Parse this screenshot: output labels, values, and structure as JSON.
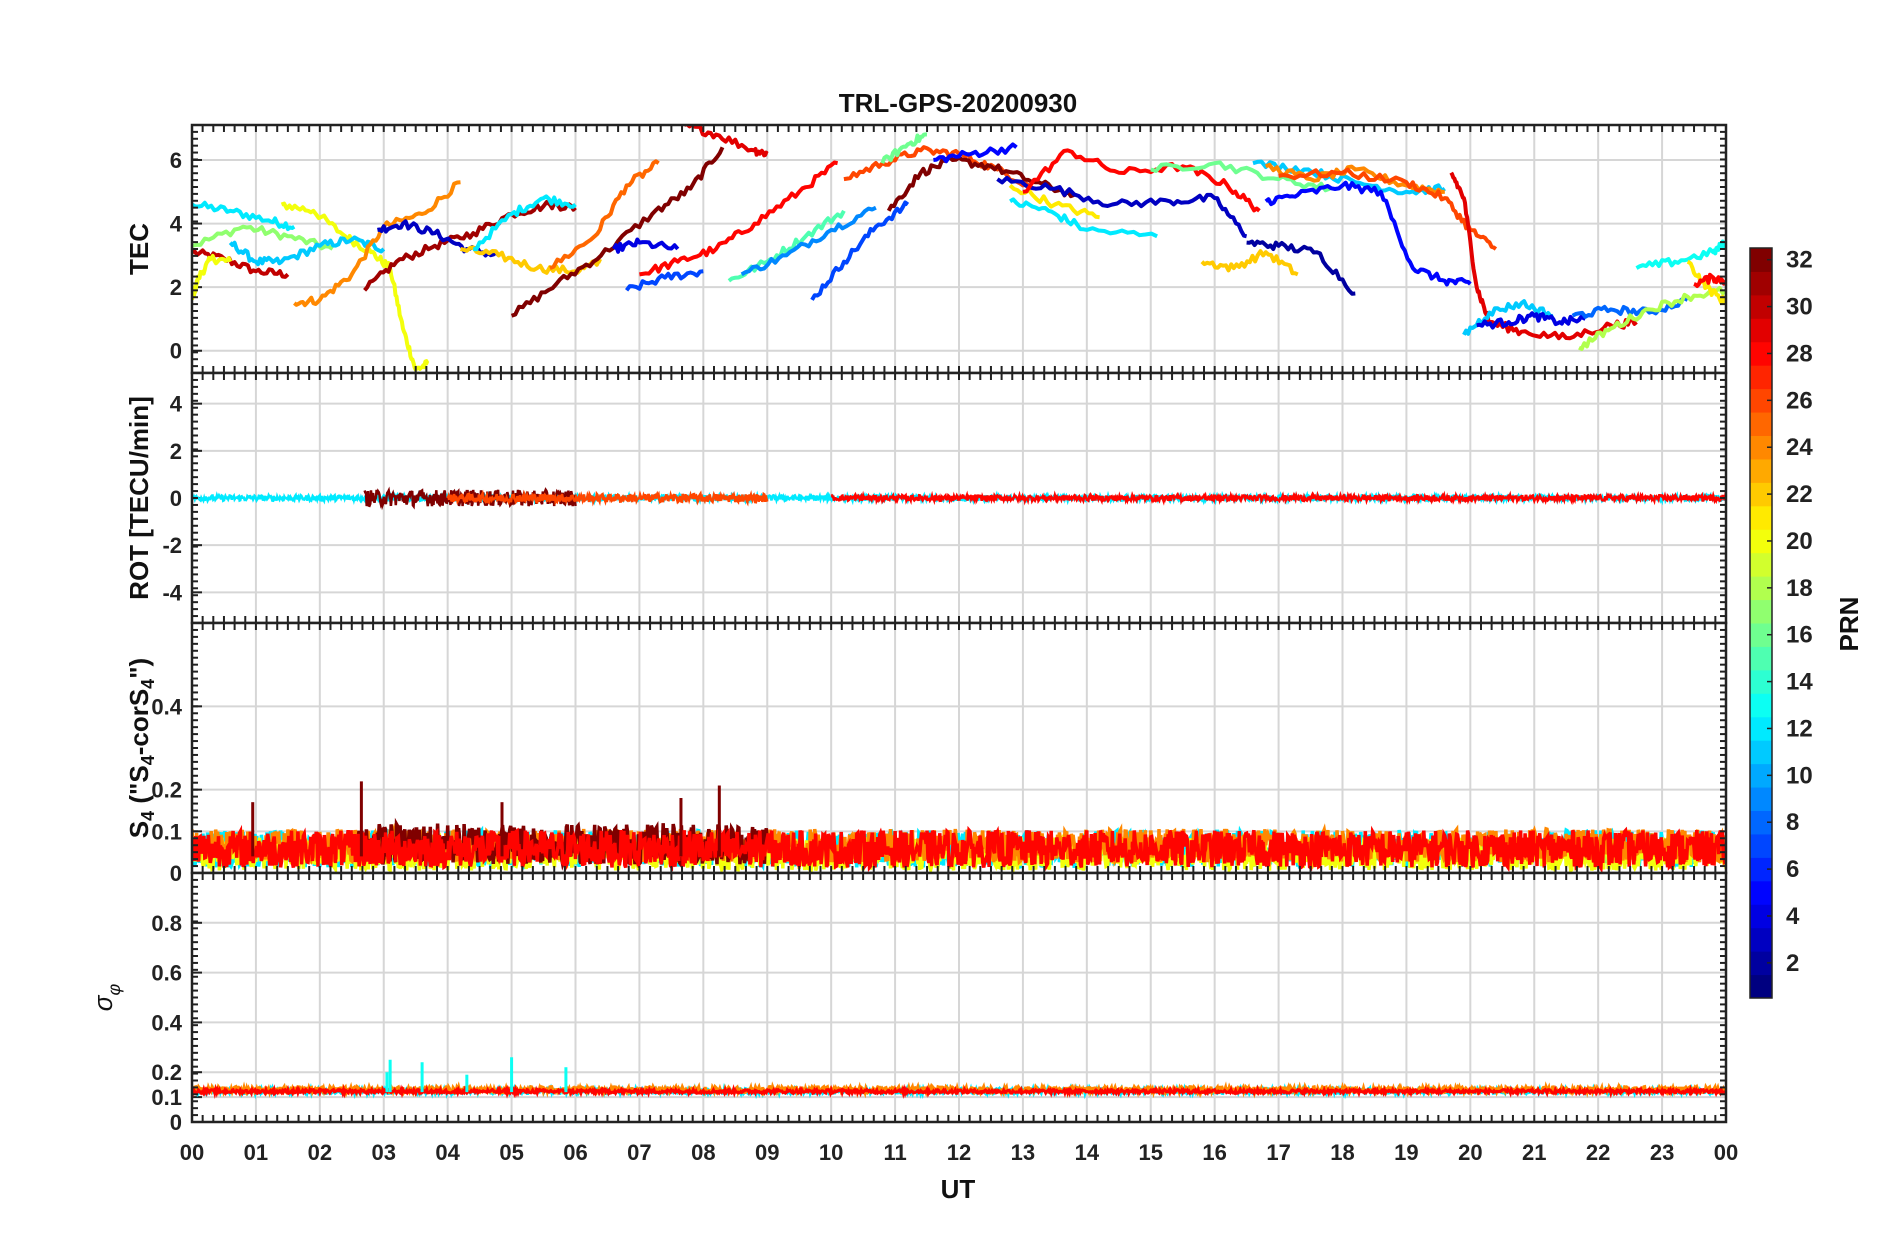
{
  "chart_data": {
    "type": "line",
    "title": "TRL-GPS-20200930",
    "xlabel": "UT",
    "x_ticks": [
      "00",
      "01",
      "02",
      "03",
      "04",
      "05",
      "06",
      "07",
      "08",
      "09",
      "10",
      "11",
      "12",
      "13",
      "14",
      "15",
      "16",
      "17",
      "18",
      "19",
      "20",
      "21",
      "22",
      "23",
      "00"
    ],
    "xlim": [
      0,
      24
    ],
    "grid": true,
    "colorbar": {
      "label": "PRN",
      "range": [
        1,
        32
      ],
      "ticks": [
        "2",
        "4",
        "6",
        "8",
        "10",
        "12",
        "14",
        "16",
        "18",
        "20",
        "22",
        "24",
        "26",
        "28",
        "30",
        "32"
      ],
      "colormap": "jet"
    },
    "panels": [
      {
        "ylabel": "TEC",
        "ylim": [
          -0.7,
          7.1
        ],
        "y_ticks": [
          "0",
          "2",
          "4",
          "6"
        ],
        "series": [
          {
            "prn": 30,
            "x": [
              0,
              0.5,
              1,
              1.5
            ],
            "y": [
              3.1,
              2.9,
              2.5,
              2.4
            ]
          },
          {
            "prn": 12,
            "x": [
              0,
              0.6,
              1.2,
              1.6
            ],
            "y": [
              4.6,
              4.4,
              4.1,
              3.9
            ]
          },
          {
            "prn": 17,
            "x": [
              0,
              0.8,
              1.5,
              2.2
            ],
            "y": [
              3.3,
              3.9,
              3.6,
              3.2
            ]
          },
          {
            "prn": 20,
            "x": [
              0,
              0.1,
              0.3,
              0.6
            ],
            "y": [
              1.6,
              2.3,
              2.9,
              2.8
            ]
          },
          {
            "prn": 20,
            "x": [
              1.4,
              1.9,
              2.4,
              2.8,
              3.1,
              3.3,
              3.5,
              3.7
            ],
            "y": [
              4.6,
              4.4,
              3.6,
              3.1,
              2.6,
              0.7,
              -0.6,
              -0.4
            ]
          },
          {
            "prn": 11,
            "x": [
              0.6,
              1.0,
              1.4,
              2.0,
              2.5,
              3.0
            ],
            "y": [
              3.4,
              2.8,
              2.8,
              3.3,
              3.5,
              3.2
            ]
          },
          {
            "prn": 24,
            "x": [
              1.6,
              2.0,
              2.5,
              3.0,
              3.6,
              4.2
            ],
            "y": [
              1.5,
              1.6,
              2.4,
              3.9,
              4.3,
              5.3
            ]
          },
          {
            "prn": 31,
            "x": [
              2.7,
              3.2,
              3.8,
              4.4,
              5.0,
              5.6,
              6.0
            ],
            "y": [
              1.9,
              2.8,
              3.3,
              3.7,
              4.3,
              4.6,
              4.5
            ]
          },
          {
            "prn": 3,
            "x": [
              2.9,
              3.3,
              3.8,
              4.3,
              4.8
            ],
            "y": [
              3.8,
              4.0,
              3.7,
              3.2,
              3.0
            ]
          },
          {
            "prn": 22,
            "x": [
              4.2,
              4.8,
              5.4,
              6.0,
              6.4
            ],
            "y": [
              3.2,
              3.0,
              2.6,
              2.5,
              2.8
            ]
          },
          {
            "prn": 12,
            "x": [
              4.4,
              5.0,
              5.5,
              6.0
            ],
            "y": [
              3.2,
              4.3,
              4.8,
              4.6
            ]
          },
          {
            "prn": 32,
            "x": [
              5.0,
              5.7,
              6.4,
              7.2,
              7.8,
              8.3
            ],
            "y": [
              1.1,
              2.1,
              3.0,
              4.3,
              5.1,
              6.4
            ]
          },
          {
            "prn": 25,
            "x": [
              5.6,
              6.3,
              6.8,
              7.3
            ],
            "y": [
              2.6,
              3.6,
              5.2,
              5.9
            ]
          },
          {
            "prn": 4,
            "x": [
              6.6,
              7.0,
              7.6
            ],
            "y": [
              3.2,
              3.4,
              3.2
            ]
          },
          {
            "prn": 7,
            "x": [
              6.8,
              7.4,
              8.0
            ],
            "y": [
              1.9,
              2.3,
              2.5
            ]
          },
          {
            "prn": 28,
            "x": [
              7.0,
              7.6,
              8.2,
              8.8,
              9.5,
              10.1
            ],
            "y": [
              2.4,
              2.8,
              3.2,
              4.0,
              5.0,
              5.9
            ]
          },
          {
            "prn": 29,
            "x": [
              7.7,
              8.2,
              8.8,
              9.0
            ],
            "y": [
              7.1,
              6.8,
              6.3,
              6.2
            ]
          },
          {
            "prn": 15,
            "x": [
              8.4,
              9.0,
              9.6,
              10.2
            ],
            "y": [
              2.2,
              2.8,
              3.6,
              4.4
            ]
          },
          {
            "prn": 9,
            "x": [
              8.6,
              9.3,
              10.0,
              10.7
            ],
            "y": [
              2.4,
              3.0,
              3.8,
              4.5
            ]
          },
          {
            "prn": 7,
            "x": [
              9.7,
              10.2,
              10.7,
              11.2
            ],
            "y": [
              1.6,
              2.8,
              3.9,
              4.6
            ]
          },
          {
            "prn": 26,
            "x": [
              10.2,
              10.8,
              11.4,
              12.0,
              12.6,
              13.2
            ],
            "y": [
              5.4,
              5.9,
              6.3,
              6.2,
              5.7,
              5.1
            ]
          },
          {
            "prn": 32,
            "x": [
              10.9,
              11.4,
              11.9,
              12.5,
              13.2,
              13.8
            ],
            "y": [
              4.4,
              5.6,
              6.0,
              5.8,
              5.3,
              4.9
            ]
          },
          {
            "prn": 16,
            "x": [
              10.8,
              11.2,
              11.5
            ],
            "y": [
              5.9,
              6.5,
              6.8
            ]
          },
          {
            "prn": 5,
            "x": [
              11.6,
              12.2,
              12.9
            ],
            "y": [
              6.0,
              6.2,
              6.4
            ]
          },
          {
            "prn": 12,
            "x": [
              12.8,
              13.4,
              14.0,
              15.1
            ],
            "y": [
              4.7,
              4.4,
              3.8,
              3.6
            ]
          },
          {
            "prn": 21,
            "x": [
              12.8,
              13.5,
              14.2
            ],
            "y": [
              5.2,
              4.6,
              4.2
            ]
          },
          {
            "prn": 3,
            "x": [
              12.6,
              13.5,
              14.4,
              15.3,
              16.0,
              16.5
            ],
            "y": [
              5.4,
              5.1,
              4.6,
              4.7,
              4.8,
              3.6
            ]
          },
          {
            "prn": 28,
            "x": [
              13.0,
              13.7,
              14.5,
              15.5,
              16.2,
              16.7
            ],
            "y": [
              5.0,
              6.3,
              5.6,
              5.8,
              5.2,
              4.4
            ]
          },
          {
            "prn": 16,
            "x": [
              15.0,
              16.0,
              17.0,
              17.8
            ],
            "y": [
              5.7,
              5.9,
              5.4,
              5.1
            ]
          },
          {
            "prn": 22,
            "x": [
              15.8,
              16.3,
              16.8,
              17.3
            ],
            "y": [
              2.8,
              2.6,
              3.1,
              2.4
            ]
          },
          {
            "prn": 2,
            "x": [
              16.5,
              17.0,
              17.6,
              18.2
            ],
            "y": [
              3.4,
              3.3,
              3.1,
              1.8
            ]
          },
          {
            "prn": 11,
            "x": [
              16.6,
              17.4,
              18.2,
              19.0,
              19.6
            ],
            "y": [
              5.9,
              5.7,
              5.3,
              5.0,
              5.1
            ]
          },
          {
            "prn": 24,
            "x": [
              16.8,
              17.5,
              18.2,
              19.0,
              19.6
            ],
            "y": [
              5.8,
              5.4,
              5.7,
              5.2,
              5.0
            ]
          },
          {
            "prn": 26,
            "x": [
              17.0,
              18.0,
              19.0,
              19.6,
              20.0,
              20.4
            ],
            "y": [
              5.5,
              5.6,
              5.3,
              4.8,
              3.8,
              3.2
            ]
          },
          {
            "prn": 5,
            "x": [
              16.8,
              17.3,
              18.0,
              18.6,
              19.1,
              19.6,
              20.0
            ],
            "y": [
              4.7,
              4.9,
              5.2,
              5.0,
              2.6,
              2.2,
              2.1
            ]
          },
          {
            "prn": 29,
            "x": [
              19.7,
              19.9,
              20.1,
              20.3,
              20.8,
              21.5,
              22.2,
              22.6
            ],
            "y": [
              5.6,
              4.8,
              2.0,
              0.9,
              0.6,
              0.4,
              0.8,
              0.9
            ]
          },
          {
            "prn": 11,
            "x": [
              19.9,
              20.3,
              20.8,
              21.3
            ],
            "y": [
              0.5,
              1.2,
              1.5,
              1.1
            ]
          },
          {
            "prn": 4,
            "x": [
              20.1,
              20.6,
              21.0,
              21.4,
              21.8
            ],
            "y": [
              0.8,
              0.9,
              1.1,
              0.9,
              1.0
            ]
          },
          {
            "prn": 8,
            "x": [
              21.6,
              22.2,
              22.8,
              23.4
            ],
            "y": [
              1.1,
              1.3,
              1.2,
              1.6
            ]
          },
          {
            "prn": 18,
            "x": [
              21.7,
              22.2,
              22.8,
              23.4,
              24
            ],
            "y": [
              0.1,
              0.7,
              1.3,
              1.7,
              1.9
            ]
          },
          {
            "prn": 13,
            "x": [
              22.6,
              23.2,
              23.8,
              24
            ],
            "y": [
              2.6,
              2.8,
              3.1,
              3.4
            ]
          },
          {
            "prn": 21,
            "x": [
              23.4,
              23.7,
              24
            ],
            "y": [
              2.8,
              2.0,
              1.5
            ]
          },
          {
            "prn": 28,
            "x": [
              23.5,
              23.8,
              24
            ],
            "y": [
              2.1,
              2.3,
              2.2
            ]
          }
        ]
      },
      {
        "ylabel": "ROT [TECU/min]",
        "ylim": [
          -5.3,
          5.3
        ],
        "y_ticks": [
          "-4",
          "-2",
          "0",
          "2",
          "4"
        ],
        "series": [
          {
            "prn": 12,
            "x_range": [
              0,
              24
            ],
            "amplitude": 0.12
          },
          {
            "prn": 32,
            "x_range": [
              2.7,
              6.0
            ],
            "amplitude": 0.35
          },
          {
            "prn": 26,
            "x_range": [
              4.0,
              9.0
            ],
            "amplitude": 0.18
          },
          {
            "prn": 28,
            "x_range": [
              10.0,
              24.0
            ],
            "amplitude": 0.12
          }
        ]
      },
      {
        "ylabel": "S4 (\"S4-corS4\")",
        "ylim": [
          0,
          0.6
        ],
        "y_ticks": [
          "0",
          "0.1",
          "0.2",
          "0.4"
        ],
        "series": [
          {
            "prn": 12,
            "x_range": [
              0,
              24
            ],
            "baseline": 0.04,
            "amplitude": 0.09
          },
          {
            "prn": 20,
            "x_range": [
              0,
              24
            ],
            "baseline": 0.03,
            "amplitude": 0.08
          },
          {
            "prn": 24,
            "x_range": [
              0,
              24
            ],
            "baseline": 0.05,
            "amplitude": 0.08
          },
          {
            "prn": 32,
            "x_range": [
              2.6,
              9.0
            ],
            "baseline": 0.05,
            "amplitude": 0.1
          },
          {
            "prn": 28,
            "x_range": [
              0,
              24
            ],
            "baseline": 0.04,
            "amplitude": 0.09
          }
        ],
        "peaks": [
          {
            "x": 2.65,
            "y": 0.22
          },
          {
            "x": 8.25,
            "y": 0.21
          },
          {
            "x": 0.95,
            "y": 0.17
          },
          {
            "x": 7.65,
            "y": 0.18
          },
          {
            "x": 4.85,
            "y": 0.17
          }
        ]
      },
      {
        "ylabel": "σφ",
        "ylim": [
          0,
          1
        ],
        "y_ticks": [
          "0",
          "0.1",
          "0.2",
          "0.4",
          "0.6",
          "0.8"
        ],
        "series": [
          {
            "prn": 12,
            "x_range": [
              0,
              24
            ],
            "baseline": 0.12,
            "amplitude": 0.02
          },
          {
            "prn": 24,
            "x_range": [
              0,
              24
            ],
            "baseline": 0.125,
            "amplitude": 0.025
          },
          {
            "prn": 28,
            "x_range": [
              0,
              24
            ],
            "baseline": 0.12,
            "amplitude": 0.015
          }
        ],
        "peaks": [
          {
            "x": 3.1,
            "y": 0.25
          },
          {
            "x": 3.6,
            "y": 0.24
          },
          {
            "x": 5.0,
            "y": 0.26
          },
          {
            "x": 5.85,
            "y": 0.22
          },
          {
            "x": 4.3,
            "y": 0.19
          },
          {
            "x": 3.05,
            "y": 0.2
          }
        ]
      }
    ]
  }
}
